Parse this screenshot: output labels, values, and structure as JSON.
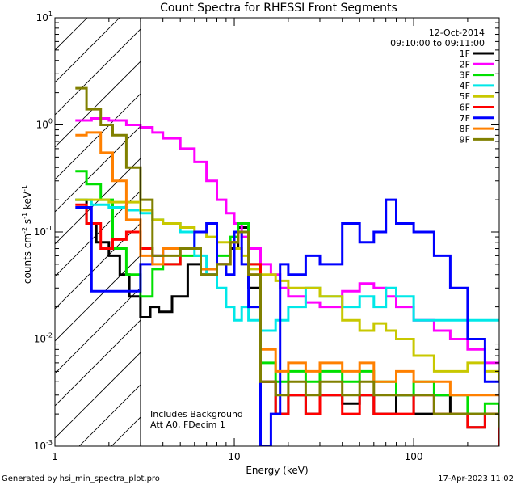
{
  "chart_data": {
    "type": "line",
    "title": "Count Spectra for RHESSI Front Segments",
    "xlabel": "Energy (keV)",
    "ylabel": {
      "base": "counts cm",
      "exp1": "-2",
      "mid1": " s",
      "exp2": "-1",
      "mid2": " keV",
      "exp3": "-1"
    },
    "x_scale": "log",
    "y_scale": "log",
    "xlim": [
      1,
      300
    ],
    "ylim": [
      0.001,
      10
    ],
    "x_tick_labels": [
      {
        "value": 1,
        "label": "1"
      },
      {
        "value": 10,
        "label": "10"
      },
      {
        "value": 100,
        "label": "100"
      }
    ],
    "y_tick_labels": [
      {
        "value": 0.001,
        "base": "10",
        "exp": "-3"
      },
      {
        "value": 0.01,
        "base": "10",
        "exp": "-2"
      },
      {
        "value": 0.1,
        "base": "10",
        "exp": "-1"
      },
      {
        "value": 1,
        "base": "10",
        "exp": "0"
      },
      {
        "value": 10,
        "base": "10",
        "exp": "1"
      }
    ],
    "date": "12-Oct-2014",
    "time_range": "09:10:00 to 09:11:00",
    "hatched_region": [
      1,
      3
    ],
    "annotations": [
      "Includes Background",
      "Att A0, FDecim 1"
    ],
    "footer_left": "Generated by hsi_min_spectra_plot.pro",
    "footer_right": "17-Apr-2023 11:02",
    "series": [
      {
        "name": "1F",
        "color": "#000000",
        "x": [
          1.3,
          1.5,
          1.7,
          2.0,
          2.3,
          2.6,
          3.0,
          3.4,
          3.8,
          4.5,
          5.5,
          6.5,
          8.0,
          9.5,
          10.5,
          12,
          14,
          17,
          20,
          25,
          30,
          40,
          50,
          60,
          80,
          100,
          130,
          160,
          200,
          250,
          300
        ],
        "y": [
          0.2,
          0.12,
          0.08,
          0.06,
          0.04,
          0.025,
          0.016,
          0.02,
          0.018,
          0.025,
          0.05,
          0.04,
          0.05,
          0.07,
          0.11,
          0.03,
          0.004,
          0.002,
          0.003,
          0.002,
          0.003,
          0.0025,
          0.003,
          0.002,
          0.003,
          0.002,
          0.003,
          0.002,
          0.0015,
          0.002,
          0.001
        ]
      },
      {
        "name": "2F",
        "color": "#ff00ff",
        "x": [
          1.3,
          1.6,
          2.0,
          2.5,
          3.0,
          3.5,
          4.0,
          5.0,
          6.0,
          7.0,
          8.0,
          9.0,
          10,
          11,
          12,
          14,
          16,
          18,
          20,
          25,
          30,
          40,
          50,
          60,
          70,
          80,
          100,
          130,
          160,
          200,
          250,
          300
        ],
        "y": [
          1.1,
          1.15,
          1.1,
          1.0,
          0.95,
          0.85,
          0.75,
          0.6,
          0.45,
          0.3,
          0.2,
          0.15,
          0.12,
          0.09,
          0.07,
          0.05,
          0.04,
          0.03,
          0.025,
          0.022,
          0.02,
          0.028,
          0.033,
          0.03,
          0.025,
          0.02,
          0.015,
          0.012,
          0.01,
          0.008,
          0.006,
          0.006
        ]
      },
      {
        "name": "3F",
        "color": "#00e000",
        "x": [
          1.3,
          1.5,
          1.8,
          2.1,
          2.5,
          3.0,
          3.5,
          4.0,
          5.0,
          6.5,
          8.0,
          9.5,
          10.5,
          12,
          14,
          17,
          20,
          25,
          30,
          40,
          50,
          60,
          80,
          100,
          130,
          160,
          200,
          250,
          300
        ],
        "y": [
          0.37,
          0.28,
          0.2,
          0.07,
          0.04,
          0.025,
          0.045,
          0.05,
          0.06,
          0.045,
          0.06,
          0.09,
          0.12,
          0.05,
          0.006,
          0.004,
          0.005,
          0.004,
          0.005,
          0.004,
          0.005,
          0.004,
          0.003,
          0.004,
          0.003,
          0.003,
          0.002,
          0.0025,
          0.002
        ]
      },
      {
        "name": "4F",
        "color": "#00e8e8",
        "x": [
          1.3,
          1.6,
          2.0,
          2.5,
          3.0,
          3.5,
          4.0,
          5.0,
          6.0,
          7.0,
          8.0,
          9.0,
          10,
          11,
          12,
          14,
          17,
          20,
          25,
          30,
          40,
          50,
          60,
          70,
          80,
          100
        ],
        "y": [
          0.2,
          0.18,
          0.17,
          0.16,
          0.15,
          0.13,
          0.12,
          0.1,
          0.06,
          0.04,
          0.03,
          0.02,
          0.015,
          0.02,
          0.015,
          0.012,
          0.015,
          0.02,
          0.03,
          0.025,
          0.02,
          0.025,
          0.02,
          0.03,
          0.025,
          0.015
        ]
      },
      {
        "name": "5F",
        "color": "#c8c800",
        "x": [
          1.3,
          1.6,
          2.0,
          2.5,
          3.0,
          3.5,
          4.0,
          5.0,
          6.0,
          7.0,
          8.0,
          9.0,
          10,
          11,
          12,
          14,
          17,
          20,
          25,
          30,
          40,
          50,
          60,
          70,
          80,
          100,
          130,
          160,
          200,
          250,
          300
        ],
        "y": [
          0.2,
          0.2,
          0.19,
          0.19,
          0.16,
          0.13,
          0.12,
          0.11,
          0.1,
          0.09,
          0.08,
          0.08,
          0.07,
          0.06,
          0.045,
          0.04,
          0.035,
          0.03,
          0.03,
          0.025,
          0.015,
          0.012,
          0.014,
          0.012,
          0.01,
          0.007,
          0.005,
          0.005,
          0.006,
          0.005,
          0.004
        ]
      },
      {
        "name": "6F",
        "color": "#ff0000",
        "x": [
          1.3,
          1.5,
          1.8,
          2.1,
          2.5,
          3.0,
          3.5,
          4.0,
          5.0,
          6.5,
          8.0,
          9.5,
          10.5,
          12,
          14,
          17,
          20,
          25,
          30,
          40,
          50,
          60,
          80,
          100,
          130,
          160,
          200,
          250,
          300
        ],
        "y": [
          0.18,
          0.12,
          0.07,
          0.085,
          0.1,
          0.07,
          0.06,
          0.05,
          0.07,
          0.045,
          0.05,
          0.08,
          0.1,
          0.05,
          0.004,
          0.002,
          0.003,
          0.002,
          0.003,
          0.002,
          0.003,
          0.002,
          0.002,
          0.003,
          0.002,
          0.002,
          0.0015,
          0.002,
          0.001
        ]
      },
      {
        "name": "7F",
        "color": "#0000ff",
        "x": [
          1.3,
          1.6,
          2.0,
          2.5,
          3.0,
          3.5,
          4.0,
          5.0,
          6.0,
          7.0,
          8.0,
          9.0,
          10,
          11,
          12,
          14,
          16,
          18,
          20,
          25,
          30,
          40,
          50,
          60,
          70,
          80,
          100,
          130,
          160,
          200,
          250,
          300
        ],
        "y": [
          0.17,
          0.028,
          0.028,
          0.028,
          0.05,
          0.06,
          0.07,
          0.07,
          0.1,
          0.12,
          0.05,
          0.04,
          0.1,
          0.05,
          0.02,
          0.001,
          0.002,
          0.05,
          0.04,
          0.06,
          0.05,
          0.12,
          0.08,
          0.1,
          0.2,
          0.12,
          0.1,
          0.06,
          0.03,
          0.01,
          0.004,
          0.004
        ]
      },
      {
        "name": "8F",
        "color": "#ff8000",
        "x": [
          1.3,
          1.5,
          1.8,
          2.1,
          2.5,
          3.0,
          3.5,
          4.0,
          5.0,
          6.5,
          8.0,
          9.5,
          10.5,
          12,
          14,
          17,
          20,
          25,
          30,
          40,
          50,
          60,
          80,
          100,
          130,
          160,
          200,
          250,
          300
        ],
        "y": [
          0.8,
          0.85,
          0.55,
          0.3,
          0.13,
          0.06,
          0.05,
          0.07,
          0.07,
          0.045,
          0.05,
          0.08,
          0.1,
          0.04,
          0.008,
          0.005,
          0.006,
          0.005,
          0.006,
          0.005,
          0.006,
          0.004,
          0.005,
          0.004,
          0.004,
          0.003,
          0.003,
          0.003,
          0.003
        ]
      },
      {
        "name": "9F",
        "color": "#808000",
        "x": [
          1.3,
          1.5,
          1.8,
          2.1,
          2.5,
          3.0,
          3.5,
          4.0,
          5.0,
          6.5,
          8.0,
          9.5,
          10.5,
          12,
          14,
          17,
          20,
          25,
          30,
          40,
          50,
          60,
          80,
          100,
          130,
          160,
          200,
          250,
          300
        ],
        "y": [
          2.2,
          1.4,
          1.0,
          0.8,
          0.4,
          0.2,
          0.06,
          0.06,
          0.07,
          0.04,
          0.05,
          0.08,
          0.1,
          0.04,
          0.004,
          0.003,
          0.004,
          0.003,
          0.004,
          0.003,
          0.004,
          0.003,
          0.003,
          0.003,
          0.002,
          0.002,
          0.002,
          0.002,
          0.0015
        ]
      }
    ]
  }
}
